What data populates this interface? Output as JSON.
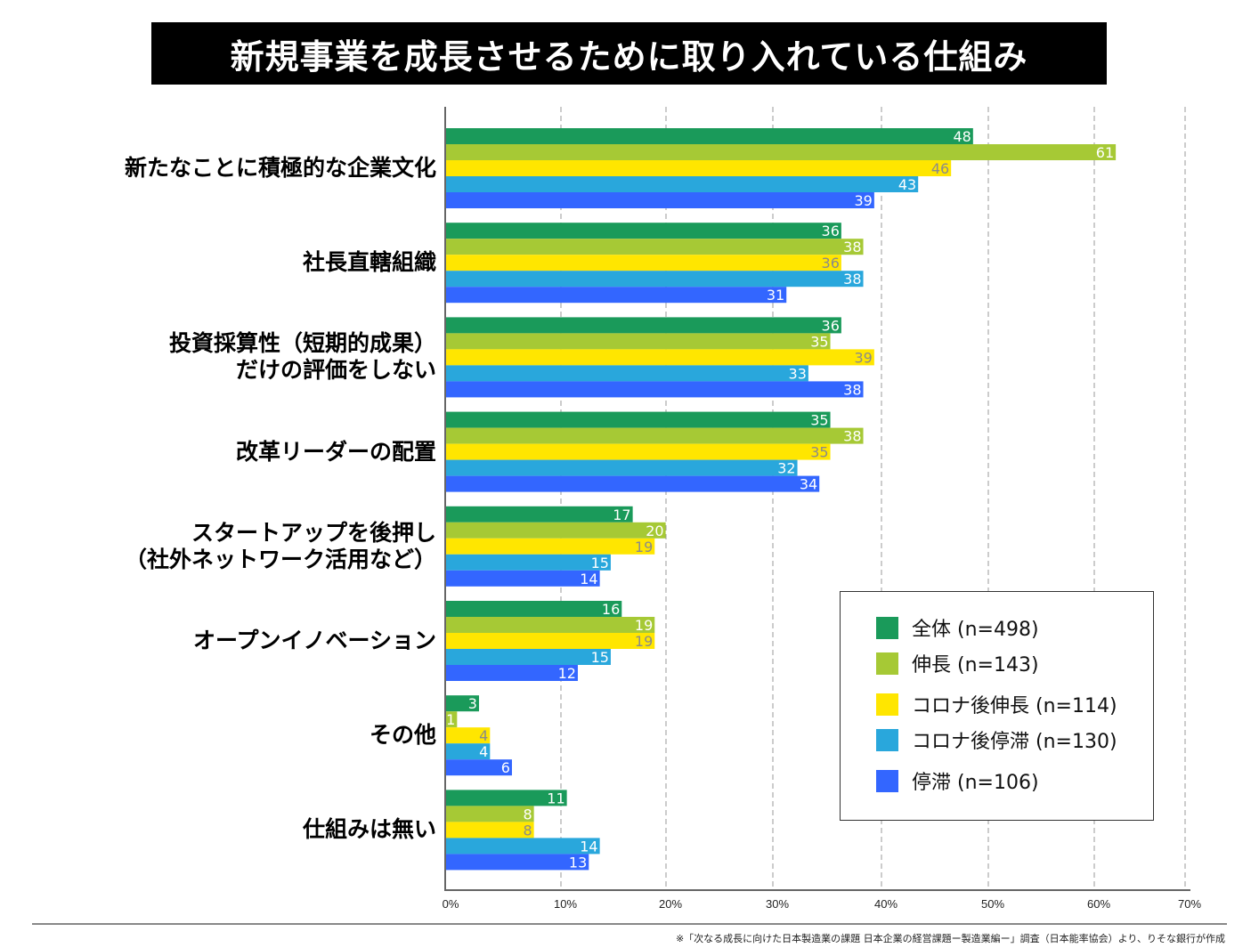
{
  "chart_data": {
    "type": "bar",
    "orientation": "horizontal",
    "title": "新規事業を成長させるために取り入れている仕組み",
    "categories": [
      "新たなことに積極的な企業文化",
      "社長直轄組織",
      "投資採算性（短期的成果）\nだけの評価をしない",
      "改革リーダーの配置",
      "スタートアップを後押し\n（社外ネットワーク活用など）",
      "オープンイノベーション",
      "その他",
      "仕組みは無い"
    ],
    "series": [
      {
        "name": "全体 (n=498)",
        "color": "#1a9a5a",
        "label_color": "#ffffff",
        "values": [
          48,
          36,
          36,
          35,
          17,
          16,
          3,
          11
        ]
      },
      {
        "name": "伸長 (n=143)",
        "color": "#a6c935",
        "label_color": "#ffffff",
        "values": [
          61,
          38,
          35,
          38,
          20,
          19,
          1,
          8
        ]
      },
      {
        "name": "コロナ後伸長 (n=114)",
        "color": "#ffe600",
        "label_color": "#8a8a8a",
        "values": [
          46,
          36,
          39,
          35,
          19,
          19,
          4,
          8
        ]
      },
      {
        "name": "コロナ後停滞 (n=130)",
        "color": "#29a7dc",
        "label_color": "#ffffff",
        "values": [
          43,
          38,
          33,
          32,
          15,
          15,
          4,
          14
        ]
      },
      {
        "name": "停滞 (n=106)",
        "color": "#3366ff",
        "label_color": "#ffffff",
        "values": [
          39,
          31,
          38,
          34,
          14,
          12,
          6,
          13
        ]
      }
    ],
    "xlim": [
      0,
      70
    ],
    "xticks": [
      "0%",
      "10%",
      "20%",
      "30%",
      "40%",
      "50%",
      "60%",
      "70%"
    ],
    "grid": "vertical dashed",
    "legend": "bottom-right",
    "footnote": "※「次なる成長に向けた日本製造業の課題 日本企業の経営課題ー製造業編ー」調査（日本能率協会）より、りそな銀行が作成"
  }
}
